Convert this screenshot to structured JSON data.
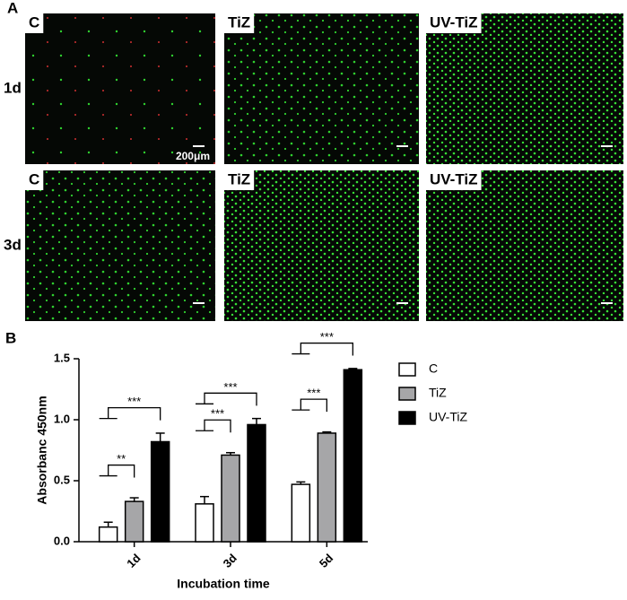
{
  "panel_a": {
    "label": "A",
    "columns": [
      "C",
      "TiZ",
      "UV-TiZ"
    ],
    "rows": [
      "1d",
      "3d"
    ],
    "scale_bar": "200μm"
  },
  "chart_data": {
    "type": "bar",
    "label": "B",
    "ylabel": "Absorbanc 450nm",
    "xlabel": "Incubation time",
    "categories": [
      "1d",
      "3d",
      "5d"
    ],
    "series": [
      {
        "name": "C",
        "color": "#ffffff",
        "values": [
          0.12,
          0.31,
          0.47
        ],
        "errors": [
          0.04,
          0.06,
          0.02
        ]
      },
      {
        "name": "TiZ",
        "color": "#a6a6a8",
        "values": [
          0.33,
          0.71,
          0.89
        ],
        "errors": [
          0.03,
          0.02,
          0.01
        ]
      },
      {
        "name": "UV-TiZ",
        "color": "#000000",
        "values": [
          0.82,
          0.96,
          1.41
        ],
        "errors": [
          0.07,
          0.05,
          0.01
        ]
      }
    ],
    "significance": [
      [
        "**",
        "***"
      ],
      [
        "***",
        "***"
      ],
      [
        "***",
        "***"
      ]
    ],
    "ylim": [
      0,
      1.5
    ],
    "yticks": [
      {
        "value": 0,
        "label": "0.0"
      },
      {
        "value": 0.5,
        "label": "0.5"
      },
      {
        "value": 1,
        "label": "1.0"
      },
      {
        "value": 1.5,
        "label": "1.5"
      }
    ]
  }
}
